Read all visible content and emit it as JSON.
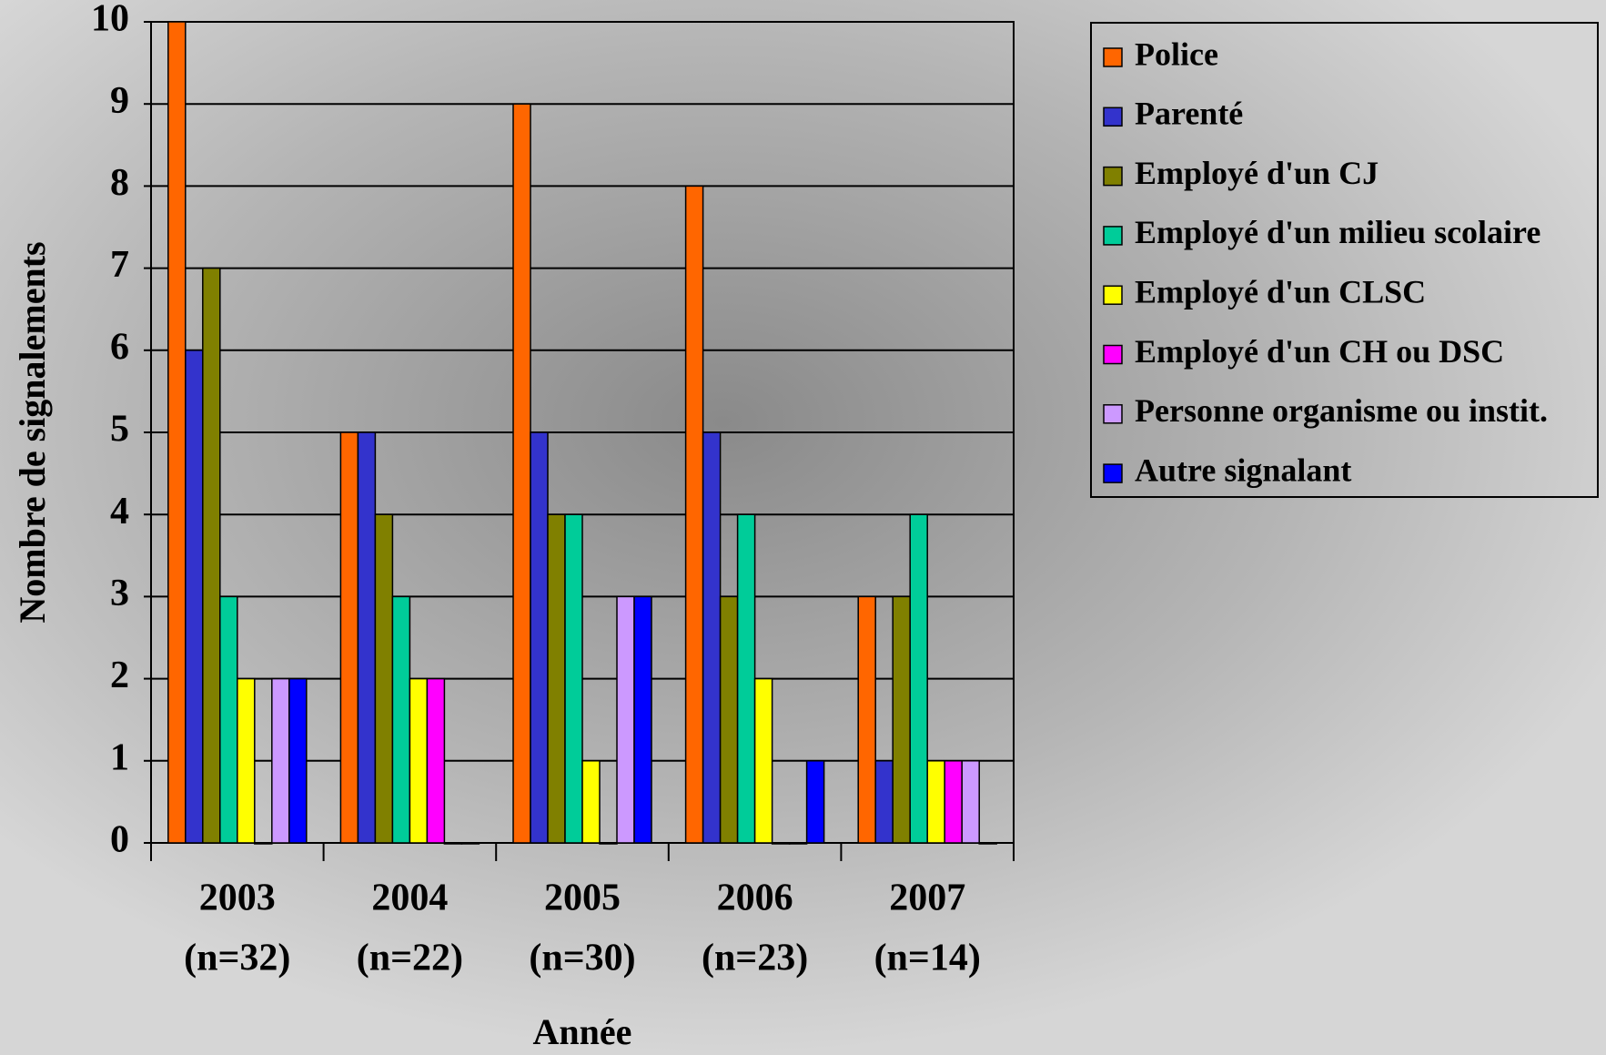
{
  "chart_data": {
    "type": "bar",
    "y_label": "Nombre de signalements",
    "x_label": "Année",
    "categories": [
      [
        "2003",
        "(n=32)"
      ],
      [
        "2004",
        "(n=22)"
      ],
      [
        "2005",
        "(n=30)"
      ],
      [
        "2006",
        "(n=23)"
      ],
      [
        "2007",
        "(n=14)"
      ]
    ],
    "series": [
      {
        "name": "Police",
        "color": "#ff6600",
        "values": [
          10,
          5,
          9,
          8,
          3
        ]
      },
      {
        "name": "Parenté",
        "color": "#3333cc",
        "values": [
          6,
          5,
          5,
          5,
          1
        ]
      },
      {
        "name": "Employé d'un CJ",
        "color": "#808000",
        "values": [
          7,
          4,
          4,
          3,
          3
        ]
      },
      {
        "name": "Employé d'un milieu scolaire",
        "color": "#00cc99",
        "values": [
          3,
          3,
          4,
          4,
          4
        ]
      },
      {
        "name": "Employé d'un CLSC",
        "color": "#ffff00",
        "values": [
          2,
          2,
          1,
          2,
          1
        ]
      },
      {
        "name": "Employé d'un CH ou DSC",
        "color": "#ff00ff",
        "values": [
          0,
          2,
          0,
          0,
          1
        ]
      },
      {
        "name": "Personne organisme ou instit.",
        "color": "#cc99ff",
        "values": [
          2,
          0,
          3,
          0,
          1
        ]
      },
      {
        "name": "Autre signalant",
        "color": "#0000ff",
        "values": [
          2,
          0,
          3,
          1,
          0
        ]
      }
    ],
    "ylim": [
      0,
      10
    ],
    "yticks": [
      0,
      1,
      2,
      3,
      4,
      5,
      6,
      7,
      8,
      9,
      10
    ],
    "grid": true,
    "legend": "right"
  }
}
